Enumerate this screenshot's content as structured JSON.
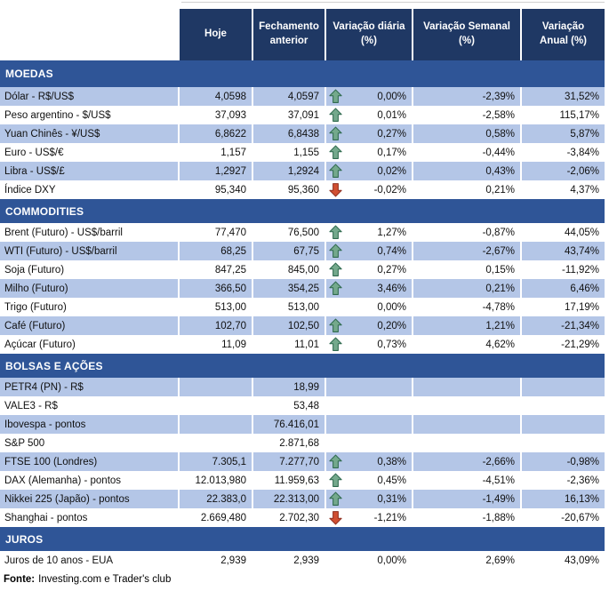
{
  "chart_data": {
    "type": "table",
    "columns": [
      "Hoje",
      "Fechamento anterior",
      "Variação diária (%)",
      "Variação Semanal (%)",
      "Variação Anual (%)"
    ],
    "sections": [
      {
        "title": "MOEDAS",
        "rows": [
          {
            "label": "Dólar - R$/US$",
            "hoje": "4,0598",
            "fechamento_anterior": "4,0597",
            "arrow": "up",
            "variacao_diaria": "0,00%",
            "variacao_semanal": "-2,39%",
            "variacao_anual": "31,52%"
          },
          {
            "label": "Peso argentino - $/US$",
            "hoje": "37,093",
            "fechamento_anterior": "37,091",
            "arrow": "up",
            "variacao_diaria": "0,01%",
            "variacao_semanal": "-2,58%",
            "variacao_anual": "115,17%"
          },
          {
            "label": "Yuan Chinês - ¥/US$",
            "hoje": "6,8622",
            "fechamento_anterior": "6,8438",
            "arrow": "up",
            "variacao_diaria": "0,27%",
            "variacao_semanal": "0,58%",
            "variacao_anual": "5,87%"
          },
          {
            "label": "Euro - US$/€",
            "hoje": "1,157",
            "fechamento_anterior": "1,155",
            "arrow": "up",
            "variacao_diaria": "0,17%",
            "variacao_semanal": "-0,44%",
            "variacao_anual": "-3,84%"
          },
          {
            "label": "Libra - US$/£",
            "hoje": "1,2927",
            "fechamento_anterior": "1,2924",
            "arrow": "up",
            "variacao_diaria": "0,02%",
            "variacao_semanal": "0,43%",
            "variacao_anual": "-2,06%"
          },
          {
            "label": "Índice DXY",
            "hoje": "95,340",
            "fechamento_anterior": "95,360",
            "arrow": "down",
            "variacao_diaria": "-0,02%",
            "variacao_semanal": "0,21%",
            "variacao_anual": "4,37%"
          }
        ]
      },
      {
        "title": "COMMODITIES",
        "rows": [
          {
            "label": "Brent (Futuro) - US$/barril",
            "hoje": "77,470",
            "fechamento_anterior": "76,500",
            "arrow": "up",
            "variacao_diaria": "1,27%",
            "variacao_semanal": "-0,87%",
            "variacao_anual": "44,05%"
          },
          {
            "label": "WTI (Futuro) - US$/barril",
            "hoje": "68,25",
            "fechamento_anterior": "67,75",
            "arrow": "up",
            "variacao_diaria": "0,74%",
            "variacao_semanal": "-2,67%",
            "variacao_anual": "43,74%"
          },
          {
            "label": "Soja (Futuro)",
            "hoje": "847,25",
            "fechamento_anterior": "845,00",
            "arrow": "up",
            "variacao_diaria": "0,27%",
            "variacao_semanal": "0,15%",
            "variacao_anual": "-11,92%"
          },
          {
            "label": "Milho (Futuro)",
            "hoje": "366,50",
            "fechamento_anterior": "354,25",
            "arrow": "up",
            "variacao_diaria": "3,46%",
            "variacao_semanal": "0,21%",
            "variacao_anual": "6,46%"
          },
          {
            "label": "Trigo (Futuro)",
            "hoje": "513,00",
            "fechamento_anterior": "513,00",
            "arrow": "none",
            "variacao_diaria": "0,00%",
            "variacao_semanal": "-4,78%",
            "variacao_anual": "17,19%"
          },
          {
            "label": "Café (Futuro)",
            "hoje": "102,70",
            "fechamento_anterior": "102,50",
            "arrow": "up",
            "variacao_diaria": "0,20%",
            "variacao_semanal": "1,21%",
            "variacao_anual": "-21,34%"
          },
          {
            "label": "Açúcar (Futuro)",
            "hoje": "11,09",
            "fechamento_anterior": "11,01",
            "arrow": "up",
            "variacao_diaria": "0,73%",
            "variacao_semanal": "4,62%",
            "variacao_anual": "-21,29%"
          }
        ]
      },
      {
        "title": "BOLSAS E AÇÕES",
        "rows": [
          {
            "label": "PETR4 (PN) - R$",
            "hoje": "",
            "fechamento_anterior": "18,99",
            "arrow": "none",
            "variacao_diaria": "",
            "variacao_semanal": "",
            "variacao_anual": ""
          },
          {
            "label": "VALE3 - R$",
            "hoje": "",
            "fechamento_anterior": "53,48",
            "arrow": "none",
            "variacao_diaria": "",
            "variacao_semanal": "",
            "variacao_anual": ""
          },
          {
            "label": "Ibovespa - pontos",
            "hoje": "",
            "fechamento_anterior": "76.416,01",
            "arrow": "none",
            "variacao_diaria": "",
            "variacao_semanal": "",
            "variacao_anual": ""
          },
          {
            "label": "S&P 500",
            "hoje": "",
            "fechamento_anterior": "2.871,68",
            "arrow": "none",
            "variacao_diaria": "",
            "variacao_semanal": "",
            "variacao_anual": ""
          },
          {
            "label": "FTSE 100 (Londres)",
            "hoje": "7.305,1",
            "fechamento_anterior": "7.277,70",
            "arrow": "up",
            "variacao_diaria": "0,38%",
            "variacao_semanal": "-2,66%",
            "variacao_anual": "-0,98%"
          },
          {
            "label": "DAX (Alemanha) - pontos",
            "hoje": "12.013,980",
            "fechamento_anterior": "11.959,63",
            "arrow": "up",
            "variacao_diaria": "0,45%",
            "variacao_semanal": "-4,51%",
            "variacao_anual": "-2,36%"
          },
          {
            "label": "Nikkei 225 (Japão) - pontos",
            "hoje": "22.383,0",
            "fechamento_anterior": "22.313,00",
            "arrow": "up",
            "variacao_diaria": "0,31%",
            "variacao_semanal": "-1,49%",
            "variacao_anual": "16,13%"
          },
          {
            "label": "Shanghai - pontos",
            "hoje": "2.669,480",
            "fechamento_anterior": "2.702,30",
            "arrow": "down",
            "variacao_diaria": "-1,21%",
            "variacao_semanal": "-1,88%",
            "variacao_anual": "-20,67%"
          }
        ]
      },
      {
        "title": "JUROS",
        "rows": [
          {
            "label": "Juros de 10 anos - EUA",
            "hoje": "2,939",
            "fechamento_anterior": "2,939",
            "arrow": "none",
            "variacao_diaria": "0,00%",
            "variacao_semanal": "2,69%",
            "variacao_anual": "43,09%"
          }
        ]
      }
    ]
  },
  "footer": {
    "source_label": "Fonte:",
    "source_text": "Investing.com e Trader's club"
  },
  "colors": {
    "header_bg": "#1F3864",
    "section_bg": "#2F5597",
    "stripe_bg": "#B4C6E7",
    "up_arrow": "#74A98C",
    "up_arrow_border": "#2F6A4F",
    "down_arrow": "#D14F32",
    "down_arrow_border": "#8F2E1E"
  },
  "icons": {
    "up": "up-arrow-icon",
    "down": "down-arrow-icon"
  }
}
